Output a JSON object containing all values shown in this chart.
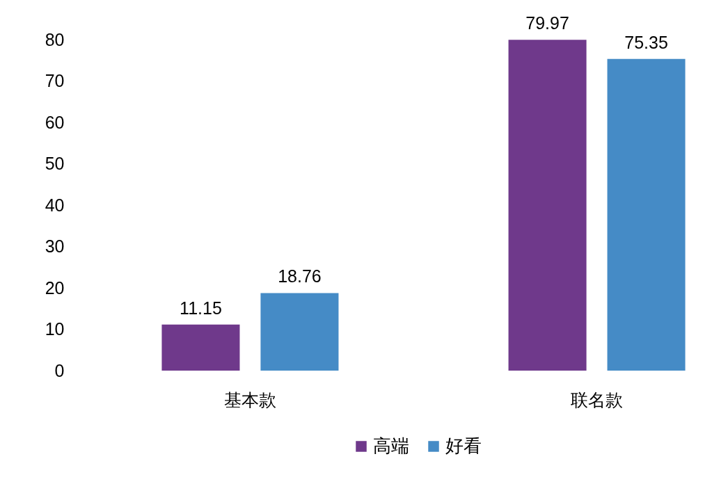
{
  "chart_data": {
    "type": "bar",
    "categories": [
      "基本款",
      "联名款"
    ],
    "series": [
      {
        "name": "高端",
        "color": "#6f398b",
        "values": [
          11.15,
          79.97
        ]
      },
      {
        "name": "好看",
        "color": "#458bc6",
        "values": [
          18.76,
          75.35
        ]
      }
    ],
    "ylim": [
      0,
      80
    ],
    "yticks": [
      0,
      10,
      20,
      30,
      40,
      50,
      60,
      70,
      80
    ],
    "data_labels": true,
    "legend": "bottom"
  }
}
